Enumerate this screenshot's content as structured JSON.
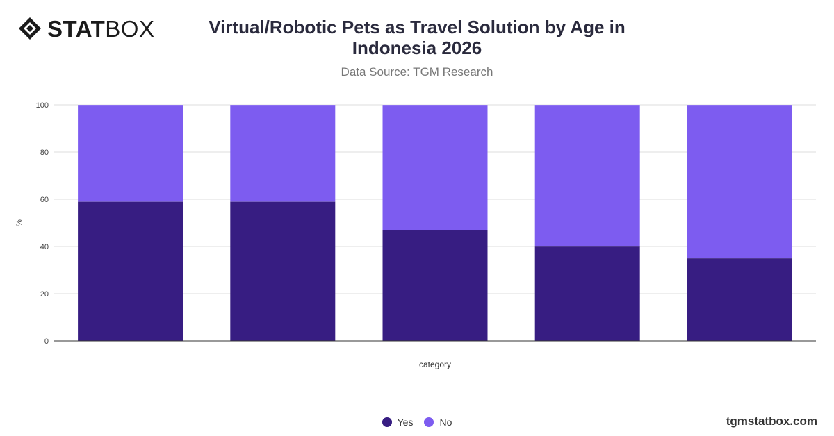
{
  "brand": {
    "logo_bold": "STAT",
    "logo_light": "BOX",
    "website": "tgmstatbox.com"
  },
  "colors": {
    "yes": "#371d82",
    "no": "#7d5cf0",
    "grid": "#dddddd",
    "axis": "#333333"
  },
  "chart_data": {
    "type": "bar",
    "stacked": true,
    "title": "Virtual/Robotic Pets as Travel Solution by Age in Indonesia 2026",
    "subtitle": "Data Source: TGM Research",
    "xlabel": "category",
    "ylabel": "%",
    "ylim": [
      0,
      100
    ],
    "yticks": [
      0,
      20,
      40,
      60,
      80,
      100
    ],
    "categories": [
      "",
      "",
      "",
      "",
      ""
    ],
    "series": [
      {
        "name": "Yes",
        "values": [
          59,
          59,
          47,
          40,
          35
        ]
      },
      {
        "name": "No",
        "values": [
          41,
          41,
          53,
          60,
          65
        ]
      }
    ],
    "grid": true,
    "legend_position": "bottom"
  }
}
